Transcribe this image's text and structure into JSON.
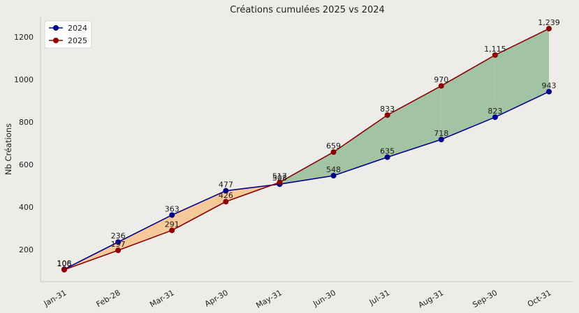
{
  "chart_data": {
    "type": "line",
    "title": "Créations cumulées 2025 vs 2024",
    "xlabel": "",
    "ylabel": "Nb Créations",
    "categories": [
      "Jan-31",
      "Feb-28",
      "Mar-31",
      "Apr-30",
      "May-31",
      "Jun-30",
      "Jul-31",
      "Aug-31",
      "Sep-30",
      "Oct-31"
    ],
    "series": [
      {
        "name": "2024",
        "color": "#00008b",
        "values": [
          108,
          236,
          363,
          477,
          508,
          548,
          635,
          718,
          823,
          943
        ],
        "labels": [
          "108",
          "236",
          "363",
          "477",
          "508",
          "548",
          "635",
          "718",
          "823",
          "943"
        ]
      },
      {
        "name": "2025",
        "color": "#8b0000",
        "values": [
          106,
          197,
          291,
          426,
          517,
          659,
          833,
          970,
          1115,
          1239
        ],
        "labels": [
          "106",
          "197",
          "291",
          "426",
          "517",
          "659",
          "833",
          "970",
          "1,115",
          "1,239"
        ]
      }
    ],
    "yticks": [
      200,
      400,
      600,
      800,
      1000,
      1200
    ],
    "ylim": [
      50,
      1295
    ],
    "fill_colors": {
      "2024_above": "#f5c99a",
      "2025_above": "#a3c4a3"
    },
    "grid": false,
    "legend_position": "top-left"
  }
}
